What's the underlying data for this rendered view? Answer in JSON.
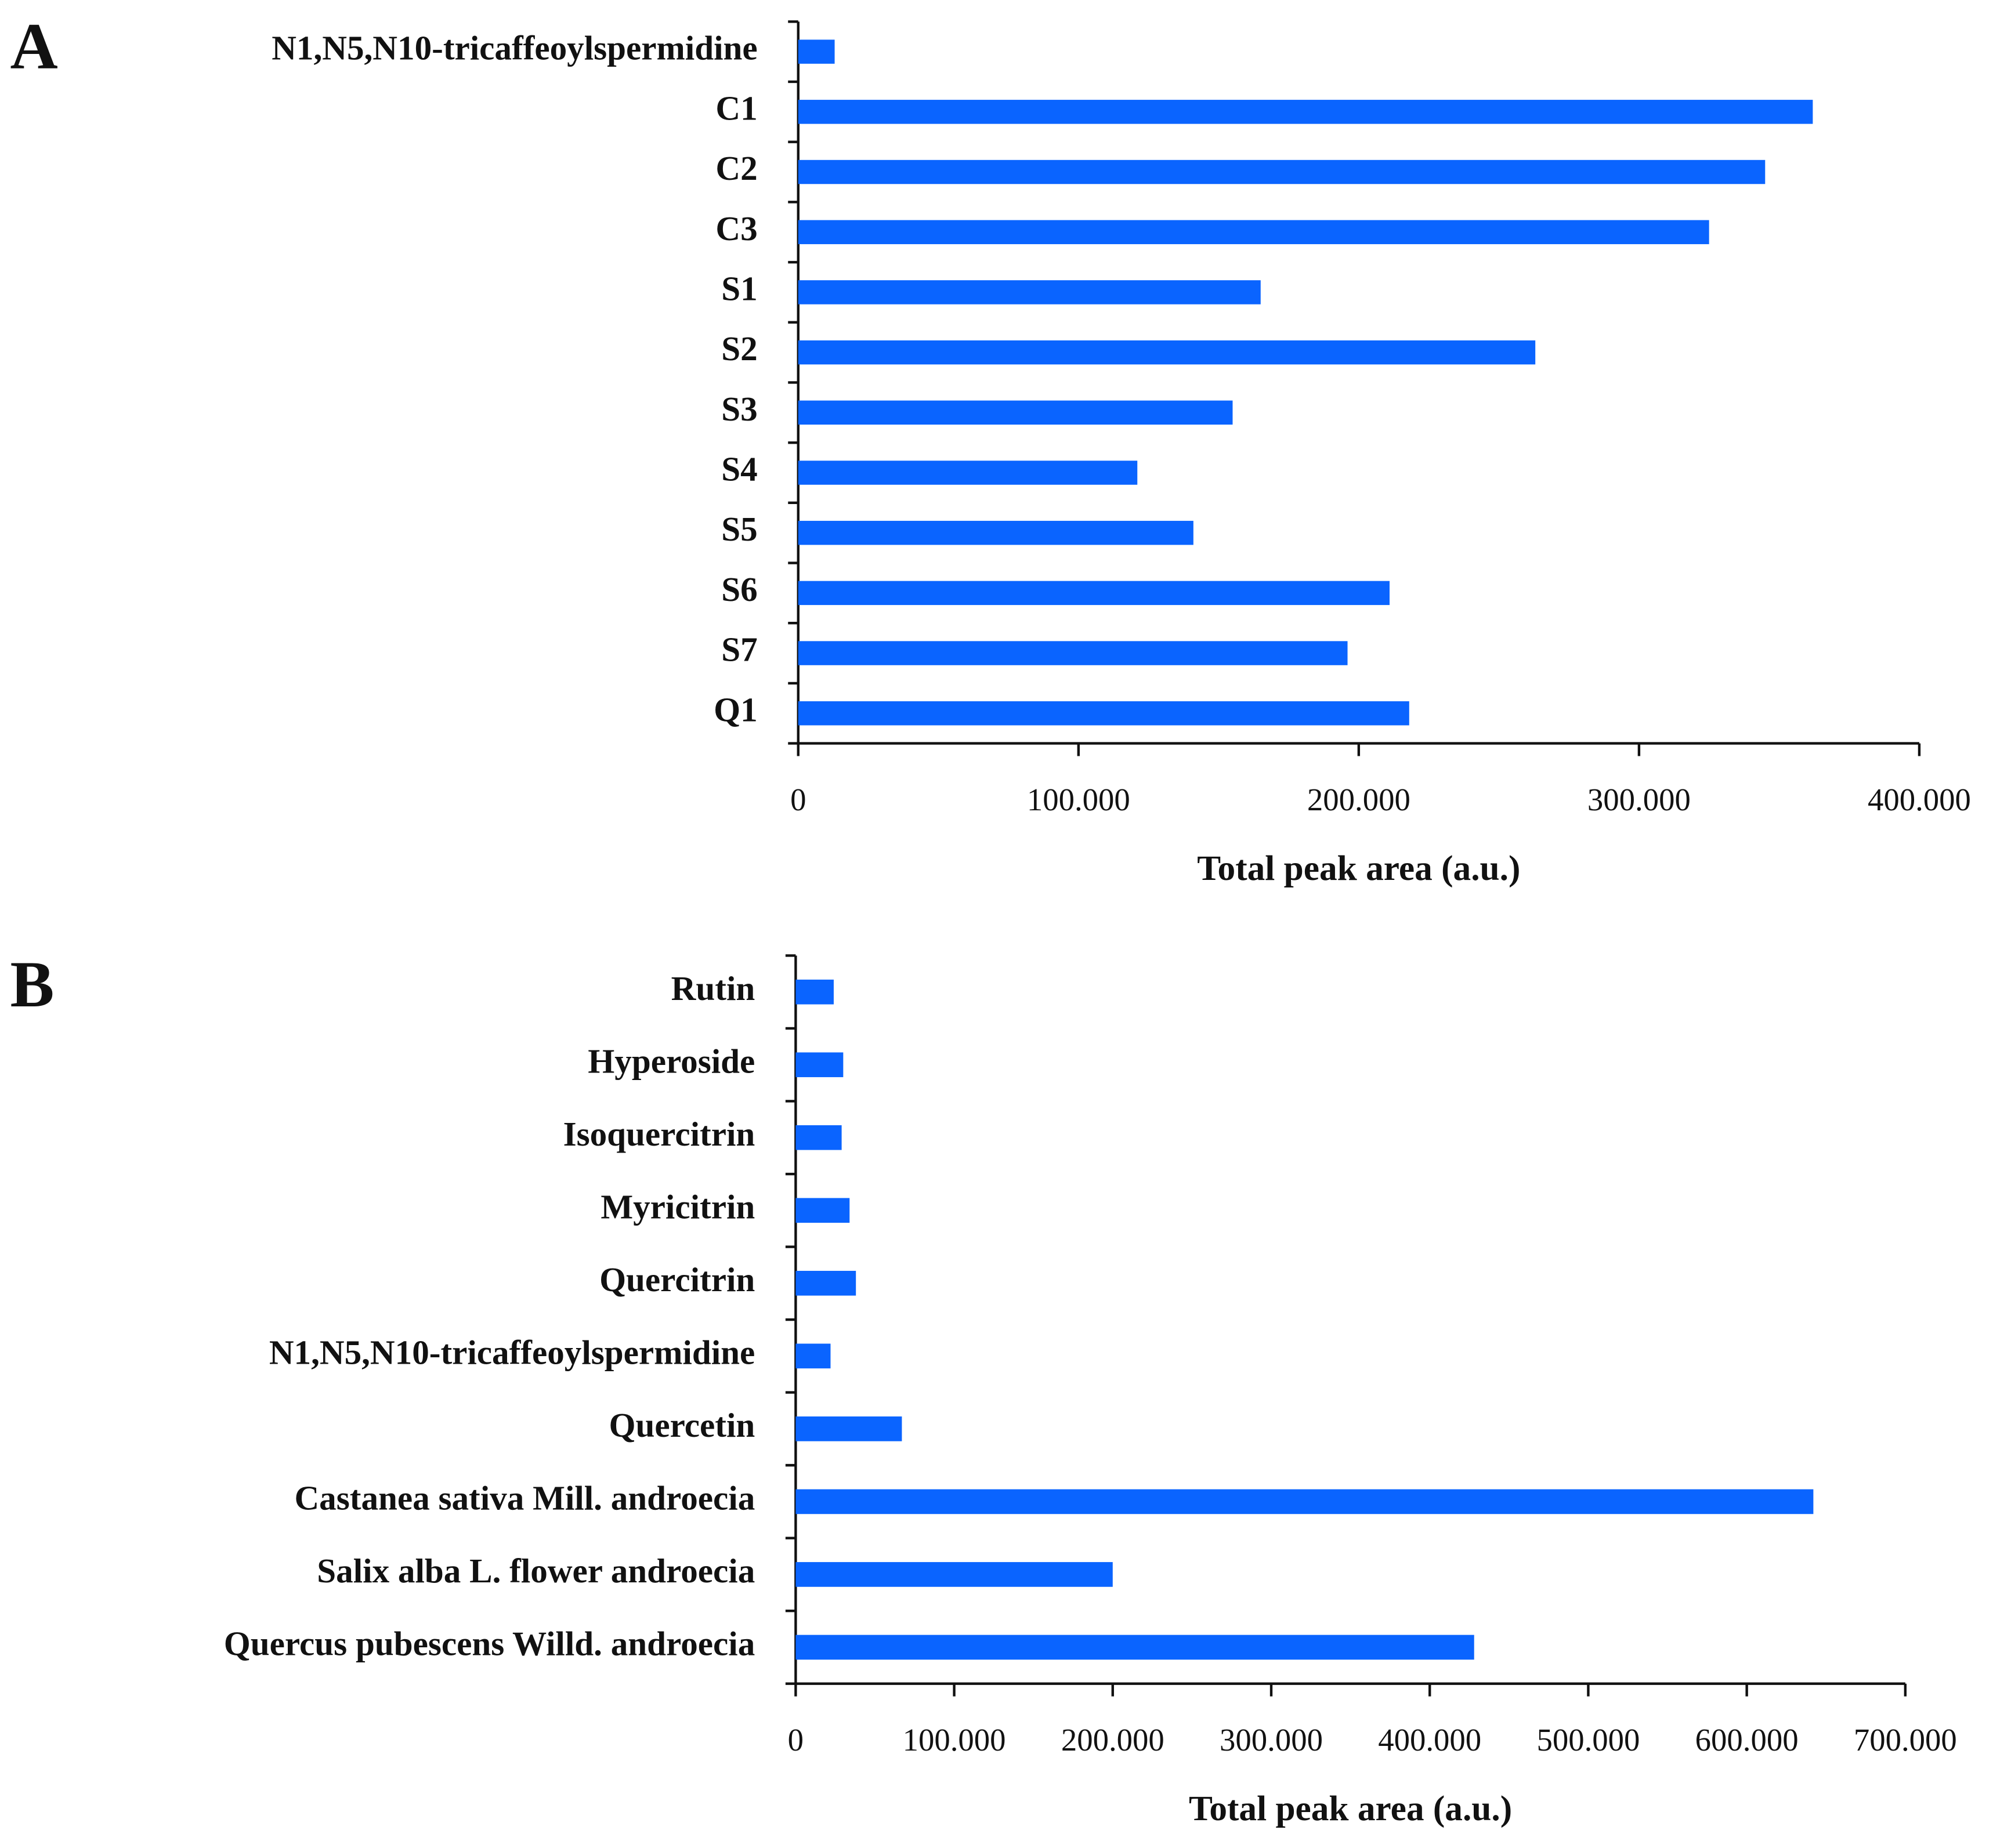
{
  "chart_data": [
    {
      "type": "bar",
      "orientation": "horizontal",
      "panel": "A",
      "x_label": "Total peak area (a.u.)",
      "color": "#0a64ff",
      "categories": [
        "N1,N5,N10-tricaffeoylspermidine",
        "C1",
        "C2",
        "C3",
        "S1",
        "S2",
        "S3",
        "S4",
        "S5",
        "S6",
        "S7",
        "Q1"
      ],
      "values": [
        13000,
        362000,
        345000,
        325000,
        165000,
        263000,
        155000,
        121000,
        141000,
        211000,
        196000,
        218000
      ],
      "xlim": [
        0,
        400000
      ],
      "xticks": [
        0,
        {
          "value": 100000,
          "label": "100.000"
        },
        {
          "value": 200000,
          "label": "200.000"
        },
        {
          "value": 300000,
          "label": "300.000"
        },
        {
          "value": 400000,
          "label": "400.000"
        }
      ]
    },
    {
      "type": "bar",
      "orientation": "horizontal",
      "panel": "B",
      "x_label": "Total peak area (a.u.)",
      "color": "#0a64ff",
      "categories": [
        "Rutin",
        "Hyperoside",
        "Isoquercitrin",
        "Myricitrin",
        "Quercitrin",
        "N1,N5,N10-tricaffeoylspermidine",
        "Quercetin",
        "Castanea sativa Mill. androecia",
        "Salix alba L. flower androecia",
        "Quercus pubescens Willd. androecia"
      ],
      "values": [
        24000,
        30000,
        29000,
        34000,
        38000,
        22000,
        67000,
        642000,
        200000,
        428000
      ],
      "xlim": [
        0,
        700000
      ],
      "xticks": [
        0,
        {
          "value": 100000,
          "label": "100.000"
        },
        {
          "value": 200000,
          "label": "200.000"
        },
        {
          "value": 300000,
          "label": "300.000"
        },
        {
          "value": 400000,
          "label": "400.000"
        },
        {
          "value": 500000,
          "label": "500.000"
        },
        {
          "value": 600000,
          "label": "600.000"
        },
        {
          "value": 700000,
          "label": "700.000"
        }
      ]
    }
  ]
}
